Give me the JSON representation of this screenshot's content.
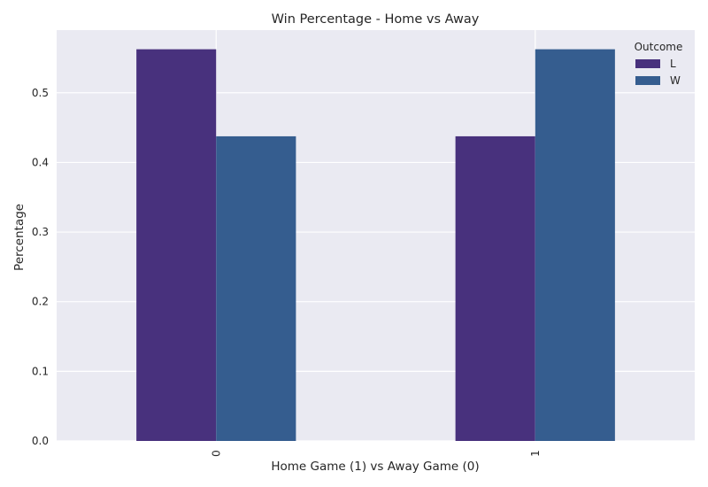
{
  "chart_data": {
    "type": "bar",
    "title": "Win Percentage - Home vs Away",
    "xlabel": "Home Game (1) vs Away Game (0)",
    "ylabel": "Percentage",
    "categories": [
      "0",
      "1"
    ],
    "series": [
      {
        "name": "L",
        "values": [
          0.5625,
          0.4375
        ],
        "color": "#48317d"
      },
      {
        "name": "W",
        "values": [
          0.4375,
          0.5625
        ],
        "color": "#355d8f"
      }
    ],
    "ylim": [
      0,
      0.59
    ],
    "yticks": [
      0.0,
      0.1,
      0.2,
      0.3,
      0.4,
      0.5
    ],
    "ytick_labels": [
      "0.0",
      "0.1",
      "0.2",
      "0.3",
      "0.4",
      "0.5"
    ],
    "grid": true,
    "legend": {
      "title": "Outcome",
      "placement": "top-right"
    },
    "colors": {
      "plot_background": "#eaeaf2",
      "grid": "#ffffff"
    }
  }
}
